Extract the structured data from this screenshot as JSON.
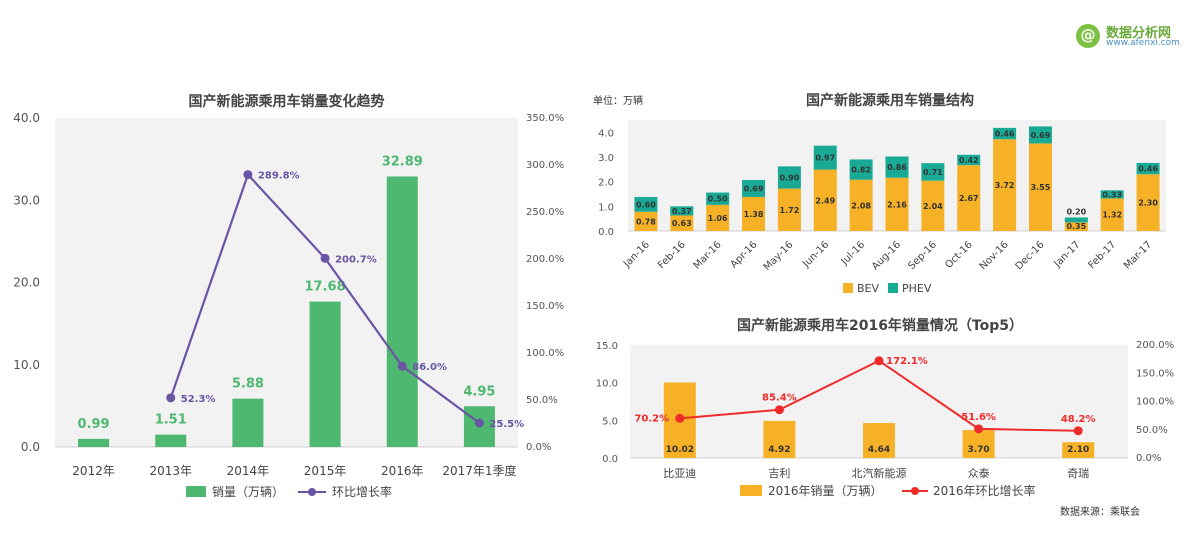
{
  "logo": {
    "name": "数据分析网",
    "url": "www.afenxi.com"
  },
  "source_note": "数据来源：乘联会",
  "colors": {
    "green_bar": "#4fb870",
    "purple_line": "#6a55a5",
    "orange": "#f6b127",
    "teal": "#19aa95",
    "red": "#ef2b2a",
    "plot_bg": "#f2f2f2"
  },
  "chart_data": [
    {
      "type": "bar",
      "title": "国产新能源乘用车销量变化趋势",
      "categories": [
        "2012年",
        "2013年",
        "2014年",
        "2015年",
        "2016年",
        "2017年1季度"
      ],
      "series": [
        {
          "name": "销量（万辆）",
          "type": "bar",
          "axis": "left",
          "values": [
            0.99,
            1.51,
            5.88,
            17.68,
            32.89,
            4.95
          ]
        },
        {
          "name": "环比增长率",
          "type": "line",
          "axis": "right",
          "values": [
            null,
            52.3,
            289.8,
            200.7,
            86.0,
            25.5
          ],
          "labels": [
            "",
            "52.3%",
            "289.8%",
            "200.7%",
            "86.0%",
            "25.5%"
          ]
        }
      ],
      "left_axis": {
        "ylim": [
          0,
          40
        ],
        "ticks": [
          "0.0",
          "10.0",
          "20.0",
          "30.0",
          "40.0"
        ]
      },
      "right_axis": {
        "ylim": [
          0,
          350
        ],
        "ticks": [
          "0.0%",
          "50.0%",
          "100.0%",
          "150.0%",
          "200.0%",
          "250.0%",
          "300.0%",
          "350.0%"
        ]
      },
      "legend": "bottom"
    },
    {
      "type": "bar",
      "stacked": true,
      "title": "国产新能源乘用车销量结构",
      "unit": "单位：万辆",
      "categories": [
        "Jan-16",
        "Feb-16",
        "Mar-16",
        "Apr-16",
        "May-16",
        "Jun-16",
        "Jul-16",
        "Aug-16",
        "Sep-16",
        "Oct-16",
        "Nov-16",
        "Dec-16",
        "Jan-17",
        "Feb-17",
        "Mar-17"
      ],
      "series": [
        {
          "name": "BEV",
          "values": [
            0.78,
            0.63,
            1.06,
            1.38,
            1.72,
            2.49,
            2.08,
            2.16,
            2.04,
            2.67,
            3.72,
            3.55,
            0.35,
            1.32,
            2.3
          ]
        },
        {
          "name": "PHEV",
          "values": [
            0.6,
            0.37,
            0.5,
            0.69,
            0.9,
            0.97,
            0.82,
            0.86,
            0.71,
            0.42,
            0.46,
            0.69,
            0.2,
            0.33,
            0.46
          ]
        }
      ],
      "ylim": [
        0,
        4.5
      ],
      "ticks": [
        "0.0",
        "1.0",
        "2.0",
        "3.0",
        "4.0"
      ],
      "legend": "bottom"
    },
    {
      "type": "bar",
      "title": "国产新能源乘用车2016年销量情况（Top5）",
      "categories": [
        "比亚迪",
        "吉利",
        "北汽新能源",
        "众泰",
        "奇瑞"
      ],
      "series": [
        {
          "name": "2016年销量（万辆）",
          "type": "bar",
          "axis": "left",
          "values": [
            10.02,
            4.92,
            4.64,
            3.7,
            2.1
          ]
        },
        {
          "name": "2016年环比增长率",
          "type": "line",
          "axis": "right",
          "values": [
            70.2,
            85.4,
            172.1,
            51.6,
            48.2
          ],
          "labels": [
            "70.2%",
            "85.4%",
            "172.1%",
            "51.6%",
            "48.2%"
          ]
        }
      ],
      "left_axis": {
        "ylim": [
          0,
          15
        ],
        "ticks": [
          "0.0",
          "5.0",
          "10.0",
          "15.0"
        ]
      },
      "right_axis": {
        "ylim": [
          0,
          200
        ],
        "ticks": [
          "0.0%",
          "50.0%",
          "100.0%",
          "150.0%",
          "200.0%"
        ]
      },
      "legend": "bottom"
    }
  ]
}
